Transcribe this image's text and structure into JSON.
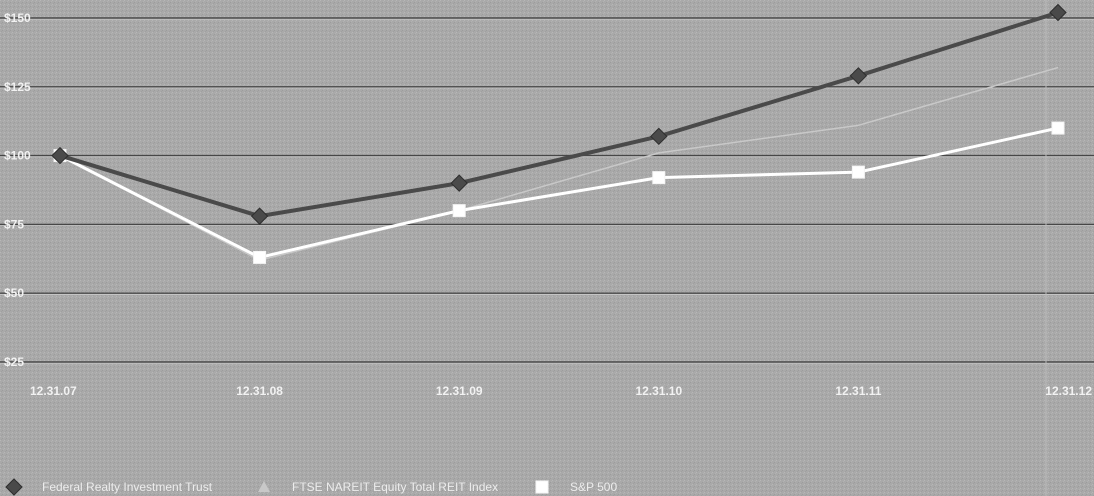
{
  "chart_data": {
    "type": "line",
    "title": "",
    "xlabel": "",
    "ylabel": "",
    "categories": [
      "12.31.07",
      "12.31.08",
      "12.31.09",
      "12.31.10",
      "12.31.11",
      "12.31.12"
    ],
    "y_tick_labels": [
      "$150",
      "$125",
      "$100",
      "$75",
      "$50",
      "$25"
    ],
    "y_ticks": [
      150,
      125,
      100,
      75,
      50,
      25
    ],
    "ylim": [
      25,
      150
    ],
    "grid": true,
    "legend_position": "bottom",
    "series": [
      {
        "name": "Federal Realty Investment Trust",
        "marker": "diamond",
        "color": "#4a4a4a",
        "values": [
          100,
          78,
          90,
          107,
          129,
          152
        ]
      },
      {
        "name": "FTSE NAREIT Equity Total REIT Index",
        "marker": "triangle",
        "color": "#c8c8c8",
        "values": [
          100,
          62,
          80,
          101,
          111,
          132
        ]
      },
      {
        "name": "S&P 500",
        "marker": "square",
        "color": "#ffffff",
        "values": [
          100,
          63,
          80,
          92,
          94,
          110
        ]
      }
    ]
  }
}
